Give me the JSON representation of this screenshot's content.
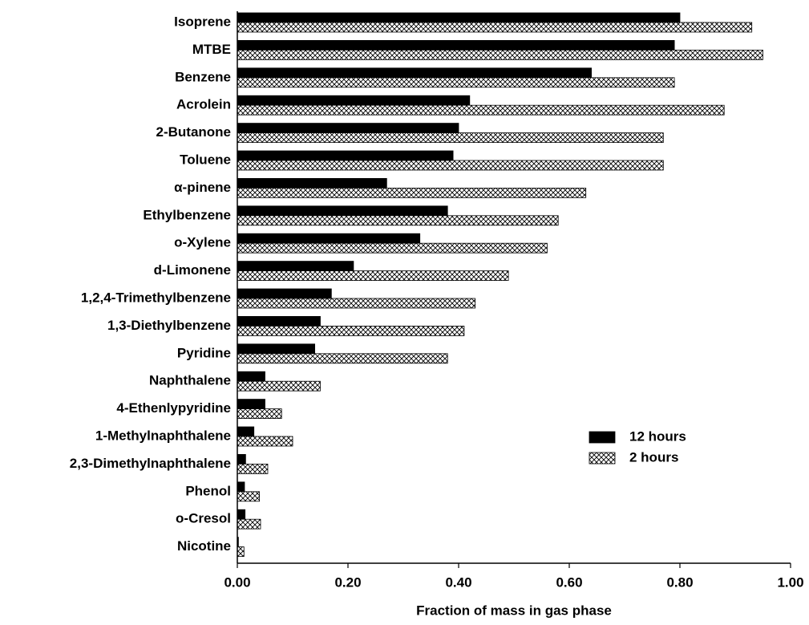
{
  "chart_data": {
    "type": "hbar",
    "x_label": "Fraction of mass in gas phase",
    "categories": [
      "Isoprene",
      "MTBE",
      "Benzene",
      "Acrolein",
      "2-Butanone",
      "Toluene",
      "α-pinene",
      "Ethylbenzene",
      "o-Xylene",
      "d-Limonene",
      "1,2,4-Trimethylbenzene",
      "1,3-Diethylbenzene",
      "Pyridine",
      "Naphthalene",
      "4-Ethenlypyridine",
      "1-Methylnaphthalene",
      "2,3-Dimethylnaphthalene",
      "Phenol",
      "o-Cresol",
      "Nicotine"
    ],
    "series": [
      {
        "name": "12 hours",
        "color": "#000000",
        "values": [
          0.8,
          0.79,
          0.64,
          0.42,
          0.4,
          0.39,
          0.27,
          0.38,
          0.33,
          0.21,
          0.17,
          0.15,
          0.14,
          0.05,
          0.05,
          0.03,
          0.015,
          0.013,
          0.014,
          0.002
        ]
      },
      {
        "name": "2 hours",
        "color": "#000000",
        "hatch": "crosshatch",
        "values": [
          0.93,
          0.95,
          0.79,
          0.88,
          0.77,
          0.77,
          0.63,
          0.58,
          0.56,
          0.49,
          0.43,
          0.41,
          0.38,
          0.15,
          0.08,
          0.1,
          0.055,
          0.04,
          0.042,
          0.012
        ]
      }
    ],
    "xlim": [
      0,
      1
    ],
    "xticks": [
      {
        "value": 0,
        "label": "0.00"
      },
      {
        "value": 0.2,
        "label": "0.20"
      },
      {
        "value": 0.4,
        "label": "0.40"
      },
      {
        "value": 0.6,
        "label": "0.60"
      },
      {
        "value": 0.8,
        "label": "0.80"
      },
      {
        "value": 1,
        "label": "1.00"
      }
    ],
    "legend": "right"
  }
}
